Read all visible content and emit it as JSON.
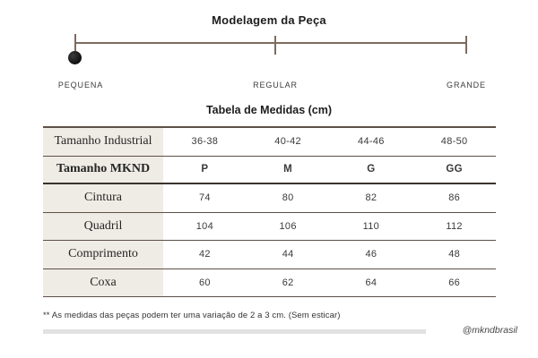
{
  "modelagem": {
    "title": "Modelagem da Peça",
    "scale_labels": [
      "PEQUENA",
      "REGULAR",
      "GRANDE"
    ],
    "selected": "PEQUENA"
  },
  "medidas": {
    "title": "Tabela de Medidas (cm)",
    "rows": [
      {
        "label": "Tamanho Industrial",
        "values": [
          "36-38",
          "40-42",
          "44-46",
          "48-50"
        ]
      },
      {
        "label": "Tamanho MKND",
        "values": [
          "P",
          "M",
          "G",
          "GG"
        ]
      },
      {
        "label": "Cintura",
        "values": [
          "74",
          "80",
          "82",
          "86"
        ]
      },
      {
        "label": "Quadril",
        "values": [
          "104",
          "106",
          "110",
          "112"
        ]
      },
      {
        "label": "Comprimento",
        "values": [
          "42",
          "44",
          "46",
          "48"
        ]
      },
      {
        "label": "Coxa",
        "values": [
          "60",
          "62",
          "64",
          "66"
        ]
      }
    ]
  },
  "footnote": "** As medidas das peças podem ter uma variação de 2 a 3 cm. (Sem esticar)",
  "handle": "@mkndbrasil",
  "colors": {
    "scale_line": "#7e6b5e",
    "marker": "#151515",
    "table_border": "#5d5047",
    "label_column_bg": "#efece5",
    "divider_bar": "#e1e1e1"
  }
}
